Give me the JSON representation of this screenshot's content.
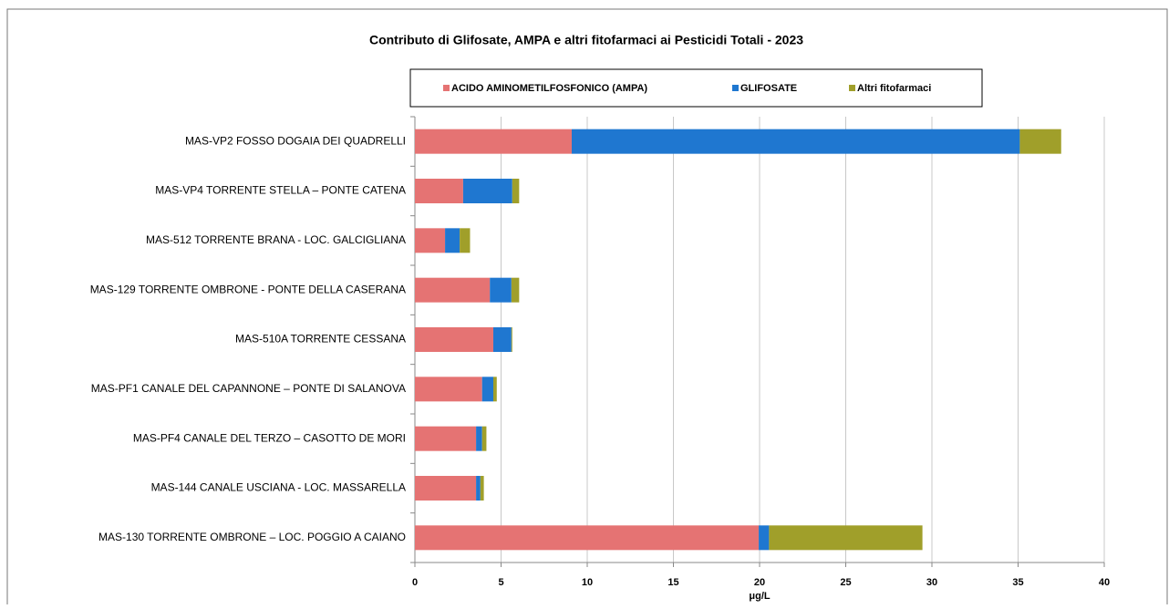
{
  "chart_data": {
    "type": "stacked_bar_horizontal",
    "title": "Contributo di Glifosate, AMPA e altri fitofarmaci ai Pesticidi Totali - 2023",
    "x_label": "μg/L",
    "categories": [
      "MAS-VP2 FOSSO DOGAIA DEI QUADRELLI",
      "MAS-VP4 TORRENTE STELLA – PONTE CATENA",
      "MAS-512 TORRENTE BRANA - LOC. GALCIGLIANA",
      "MAS-129 TORRENTE OMBRONE - PONTE DELLA CASERANA",
      "MAS-510A TORRENTE CESSANA",
      "MAS-PF1 CANALE DEL CAPANNONE – PONTE DI SALANOVA",
      "MAS-PF4 CANALE DEL TERZO – CASOTTO DE  MORI",
      "MAS-144 CANALE USCIANA - LOC. MASSARELLA",
      "MAS-130 TORRENTE OMBRONE – LOC. POGGIO A CAIANO"
    ],
    "series": [
      {
        "name": "ACIDO AMINOMETILFOSFONICO (AMPA)",
        "color": "#e57373",
        "values": [
          9.1,
          2.8,
          1.75,
          4.35,
          4.55,
          3.9,
          3.55,
          3.55,
          19.95
        ]
      },
      {
        "name": "GLIFOSATE",
        "color": "#1f77d0",
        "values": [
          26.0,
          2.85,
          0.85,
          1.25,
          1.05,
          0.65,
          0.35,
          0.25,
          0.6
        ]
      },
      {
        "name": "Altri fitofarmaci",
        "color": "#a09f2a",
        "values": [
          2.4,
          0.4,
          0.6,
          0.45,
          0.05,
          0.2,
          0.25,
          0.2,
          8.9
        ]
      }
    ],
    "xlim": [
      0,
      40
    ],
    "xticks": [
      0,
      5,
      10,
      15,
      20,
      25,
      30,
      35,
      40
    ],
    "grid": true,
    "legend": "top"
  }
}
